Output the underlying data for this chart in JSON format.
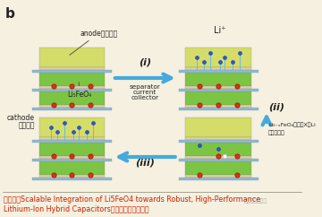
{
  "bg_color": "#f5f0e0",
  "anode_color": "#d4dc6a",
  "cathode_top_color": "#7cc444",
  "cathode_bot_color": "#5aaa2a",
  "separator_color": "#ddd0a0",
  "collector_color": "#90b8d0",
  "arrow_color": "#44aadd",
  "footer_text_cn": "来源：《Scalable Integration of Li",
  "footer_line1": "来源：《Scalable Integration of Li5FeO4 towards Robust, High-Performance",
  "footer_line2": "Lithium-Ion Hybrid Capacitors》，国金证券研究所",
  "footer_color": "#cc2200",
  "footer_fontsize": 5.8,
  "label_fontsize": 5.5,
  "b_fontsize": 11
}
